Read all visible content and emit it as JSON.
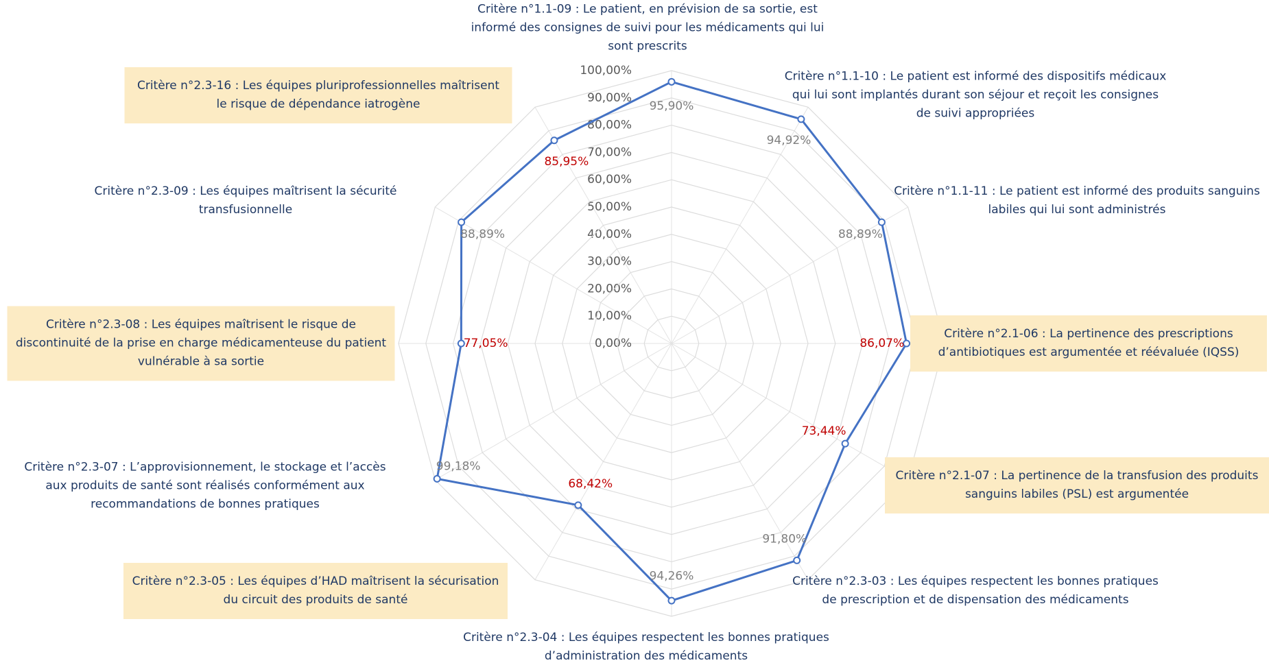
{
  "chart_data": {
    "type": "radar",
    "categories": [
      "Critère n°1.1-09 : Le patient, en prévision de sa sortie, est informé des consignes de suivi pour les médicaments qui lui sont prescrits",
      "Critère n°1.1-10 : Le patient est informé des dispositifs médicaux qui lui sont implantés durant son séjour et reçoit les consignes de suivi appropriées",
      "Critère n°1.1-11 : Le patient est informé des produits sanguins labiles qui lui sont administrés",
      "Critère n°2.1-06 : La pertinence des prescriptions d’antibiotiques est argumentée et réévaluée (IQSS)",
      "Critère n°2.1-07 : La pertinence de la transfusion des produits sanguins labiles (PSL) est argumentée",
      "Critère n°2.3-03 : Les équipes respectent les bonnes pratiques de prescription et de dispensation des médicaments",
      "Critère n°2.3-04 : Les équipes respectent les bonnes pratiques d’administration des médicaments",
      "Critère n°2.3-05 : Les équipes d’HAD maîtrisent la sécurisation du circuit des produits de santé",
      "Critère n°2.3-07 : L’approvisionnement, le stockage et l’accès aux produits de santé sont réalisés conformément aux recommandations de bonnes pratiques",
      "Critère n°2.3-08 : Les équipes maîtrisent le risque de discontinuité de la prise en charge médicamenteuse du patient vulnérable à sa sortie",
      "Critère n°2.3-09 : Les équipes maîtrisent la sécurité transfusionnelle",
      "Critère n°2.3-16 : Les équipes pluriprofessionnelles maîtrisent le risque de dépendance iatrogène"
    ],
    "values": [
      95.9,
      94.92,
      88.89,
      86.07,
      73.44,
      91.8,
      94.26,
      68.42,
      99.18,
      77.05,
      88.89,
      85.95
    ],
    "value_labels": [
      "95,90%",
      "94,92%",
      "88,89%",
      "86,07%",
      "73,44%",
      "91,80%",
      "94,26%",
      "68,42%",
      "99,18%",
      "77,05%",
      "88,89%",
      "85,95%"
    ],
    "highlighted": [
      false,
      false,
      false,
      true,
      true,
      false,
      false,
      true,
      false,
      true,
      false,
      true
    ],
    "color": "#4472c4",
    "label_color": "#7f7f7f",
    "highlight_color": "#c00000",
    "ylim": [
      0,
      100
    ],
    "yticks": [
      {
        "value": 0,
        "label": "0,00%"
      },
      {
        "value": 10,
        "label": "10,00%"
      },
      {
        "value": 20,
        "label": "20,00%"
      },
      {
        "value": 30,
        "label": "30,00%"
      },
      {
        "value": 40,
        "label": "40,00%"
      },
      {
        "value": 50,
        "label": "50,00%"
      },
      {
        "value": 60,
        "label": "60,00%"
      },
      {
        "value": 70,
        "label": "70,00%"
      },
      {
        "value": 80,
        "label": "80,00%"
      },
      {
        "value": 90,
        "label": "90,00%"
      },
      {
        "value": 100,
        "label": "100,00%"
      }
    ],
    "grid": true
  }
}
